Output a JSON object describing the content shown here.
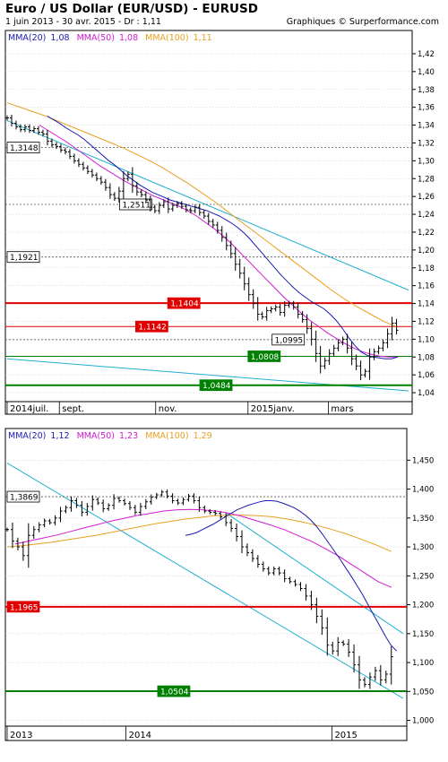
{
  "header": {
    "title": "Euro / US Dollar (EUR/USD) - EURUSD",
    "subtitle": "1 juin 2013 - 30 avr. 2015 - Dr : 1,11",
    "credit": "Graphiques © Surperformance.com"
  },
  "colors": {
    "mma20": "#1a1ab0",
    "mma50": "#d21ad2",
    "mma100": "#e8a020",
    "trend": "#20b0d0",
    "resistance": "#e00000",
    "support": "#008000",
    "dashed": "#555555",
    "grid": "#c8c8c8",
    "price": "#000000"
  },
  "chart_data": [
    {
      "type": "ohlc",
      "name": "daily",
      "legend": [
        {
          "label": "MMA(20)",
          "value": "1,08",
          "color": "#1a1ab0"
        },
        {
          "label": "MMA(50)",
          "value": "1,08",
          "color": "#d21ad2"
        },
        {
          "label": "MMA(100)",
          "value": "1,11",
          "color": "#e8a020"
        }
      ],
      "ylim": [
        1.03,
        1.43
      ],
      "y_ticks": [
        1.04,
        1.06,
        1.08,
        1.1,
        1.12,
        1.14,
        1.16,
        1.18,
        1.2,
        1.22,
        1.24,
        1.26,
        1.28,
        1.3,
        1.32,
        1.34,
        1.36,
        1.38,
        1.4,
        1.42
      ],
      "y_tick_labels": [
        "1,04",
        "1,06",
        "1,08",
        "1,10",
        "1,12",
        "1,14",
        "1,16",
        "1,18",
        "1,20",
        "1,22",
        "1,24",
        "1,26",
        "1,28",
        "1,30",
        "1,32",
        "1,34",
        "1,36",
        "1,38",
        "1,40",
        "1,42"
      ],
      "x_labels": [
        "2014juil.",
        "sept.",
        "nov.",
        "2015janv.",
        "mars"
      ],
      "x_label_pos": [
        0.0,
        0.13,
        0.37,
        0.6,
        0.8
      ],
      "close": [
        1.348,
        1.342,
        1.338,
        1.335,
        1.338,
        1.334,
        1.336,
        1.332,
        1.33,
        1.322,
        1.318,
        1.316,
        1.312,
        1.31,
        1.305,
        1.3,
        1.296,
        1.292,
        1.288,
        1.284,
        1.28,
        1.276,
        1.27,
        1.262,
        1.258,
        1.266,
        1.28,
        1.285,
        1.272,
        1.265,
        1.262,
        1.256,
        1.248,
        1.244,
        1.25,
        1.254,
        1.246,
        1.25,
        1.252,
        1.249,
        1.245,
        1.244,
        1.248,
        1.242,
        1.238,
        1.232,
        1.228,
        1.222,
        1.214,
        1.205,
        1.196,
        1.184,
        1.174,
        1.162,
        1.15,
        1.14,
        1.128,
        1.125,
        1.132,
        1.134,
        1.136,
        1.13,
        1.138,
        1.14,
        1.136,
        1.128,
        1.122,
        1.112,
        1.1,
        1.084,
        1.07,
        1.076,
        1.084,
        1.09,
        1.096,
        1.1,
        1.09,
        1.078,
        1.07,
        1.06,
        1.064,
        1.08,
        1.086,
        1.09,
        1.096,
        1.106,
        1.118,
        1.11
      ],
      "mma20": [
        1.35,
        1.346,
        1.342,
        1.337,
        1.333,
        1.329,
        1.324,
        1.318,
        1.312,
        1.306,
        1.3,
        1.295,
        1.289,
        1.283,
        1.278,
        1.273,
        1.269,
        1.265,
        1.262,
        1.259,
        1.256,
        1.254,
        1.252,
        1.25,
        1.248,
        1.246,
        1.244,
        1.241,
        1.238,
        1.234,
        1.23,
        1.225,
        1.219,
        1.212,
        1.204,
        1.196,
        1.188,
        1.18,
        1.172,
        1.165,
        1.158,
        1.152,
        1.147,
        1.142,
        1.138,
        1.134,
        1.128,
        1.121,
        1.112,
        1.102,
        1.093,
        1.086,
        1.082,
        1.08,
        1.079,
        1.078,
        1.078,
        1.08
      ],
      "mma50": [
        1.34,
        1.334,
        1.328,
        1.322,
        1.315,
        1.308,
        1.301,
        1.294,
        1.288,
        1.282,
        1.276,
        1.271,
        1.266,
        1.261,
        1.257,
        1.253,
        1.249,
        1.244,
        1.238,
        1.231,
        1.224,
        1.216,
        1.207,
        1.197,
        1.187,
        1.177,
        1.167,
        1.157,
        1.147,
        1.138,
        1.129,
        1.121,
        1.114,
        1.107,
        1.101,
        1.095,
        1.09,
        1.086,
        1.083,
        1.081,
        1.08,
        1.08
      ],
      "mma100": [
        1.365,
        1.36,
        1.355,
        1.35,
        1.344,
        1.338,
        1.332,
        1.326,
        1.32,
        1.314,
        1.307,
        1.3,
        1.292,
        1.283,
        1.274,
        1.264,
        1.254,
        1.243,
        1.232,
        1.221,
        1.21,
        1.199,
        1.188,
        1.177,
        1.166,
        1.155,
        1.145,
        1.136,
        1.128,
        1.12,
        1.114
      ],
      "trendlines": [
        {
          "from": [
            0.0,
            1.345
          ],
          "to": [
            1.0,
            1.155
          ]
        },
        {
          "from": [
            0.0,
            1.078
          ],
          "to": [
            1.0,
            1.042
          ]
        }
      ],
      "levels": [
        {
          "value": 1.3148,
          "label": "1,3148",
          "style": "dashed",
          "label_pos": 0.0
        },
        {
          "value": 1.2511,
          "label": "1,2511",
          "style": "dashed",
          "label_pos": 0.28
        },
        {
          "value": 1.1921,
          "label": "1,1921",
          "style": "dashed",
          "label_pos": 0.0
        },
        {
          "value": 1.1404,
          "label": "1,1404",
          "style": "red-thick",
          "label_pos": 0.4
        },
        {
          "value": 1.1142,
          "label": "1,1142",
          "style": "red",
          "label_pos": 0.32
        },
        {
          "value": 1.0995,
          "label": "1,0995",
          "style": "dashed",
          "label_pos": 0.66
        },
        {
          "value": 1.0808,
          "label": "1,0808",
          "style": "green",
          "label_pos": 0.6
        },
        {
          "value": 1.0484,
          "label": "1,0484",
          "style": "green-thick",
          "label_pos": 0.48
        }
      ]
    },
    {
      "type": "ohlc",
      "name": "weekly",
      "legend": [
        {
          "label": "MMA(20)",
          "value": "1,12",
          "color": "#1a1ab0"
        },
        {
          "label": "MMA(50)",
          "value": "1,23",
          "color": "#d21ad2"
        },
        {
          "label": "MMA(100)",
          "value": "1,29",
          "color": "#e8a020"
        }
      ],
      "ylim": [
        0.99,
        1.48
      ],
      "y_ticks": [
        1.0,
        1.05,
        1.1,
        1.15,
        1.2,
        1.25,
        1.3,
        1.35,
        1.4,
        1.45
      ],
      "y_tick_labels": [
        "1,000",
        "1,050",
        "1,100",
        "1,150",
        "1,200",
        "1,250",
        "1,300",
        "1,350",
        "1,400",
        "1,450"
      ],
      "x_labels": [
        "2013",
        "2014",
        "2015"
      ],
      "x_label_pos": [
        0.0,
        0.3,
        0.82
      ],
      "close": [
        1.33,
        1.31,
        1.3,
        1.285,
        1.32,
        1.33,
        1.338,
        1.345,
        1.342,
        1.35,
        1.362,
        1.368,
        1.38,
        1.372,
        1.36,
        1.37,
        1.382,
        1.376,
        1.366,
        1.372,
        1.384,
        1.38,
        1.375,
        1.368,
        1.36,
        1.37,
        1.378,
        1.386,
        1.39,
        1.395,
        1.388,
        1.38,
        1.376,
        1.382,
        1.388,
        1.38,
        1.368,
        1.362,
        1.36,
        1.358,
        1.352,
        1.342,
        1.332,
        1.318,
        1.3,
        1.29,
        1.28,
        1.27,
        1.262,
        1.255,
        1.262,
        1.255,
        1.245,
        1.24,
        1.235,
        1.228,
        1.215,
        1.2,
        1.18,
        1.16,
        1.13,
        1.12,
        1.135,
        1.132,
        1.118,
        1.096,
        1.07,
        1.062,
        1.075,
        1.086,
        1.07,
        1.08,
        1.11
      ],
      "mma20": [
        1.32,
        1.322,
        1.325,
        1.33,
        1.335,
        1.34,
        1.346,
        1.352,
        1.358,
        1.364,
        1.368,
        1.372,
        1.375,
        1.378,
        1.38,
        1.38,
        1.379,
        1.376,
        1.372,
        1.368,
        1.362,
        1.355,
        1.346,
        1.335,
        1.322,
        1.308,
        1.294,
        1.28,
        1.265,
        1.25,
        1.234,
        1.218,
        1.2,
        1.182,
        1.164,
        1.146,
        1.13,
        1.12
      ],
      "mma50": [
        1.305,
        1.31,
        1.315,
        1.32,
        1.326,
        1.332,
        1.338,
        1.344,
        1.349,
        1.354,
        1.358,
        1.362,
        1.364,
        1.365,
        1.364,
        1.362,
        1.358,
        1.352,
        1.345,
        1.338,
        1.33,
        1.32,
        1.31,
        1.298,
        1.285,
        1.27,
        1.255,
        1.24,
        1.23
      ],
      "mma100": [
        1.3,
        1.302,
        1.305,
        1.308,
        1.312,
        1.316,
        1.32,
        1.325,
        1.33,
        1.335,
        1.34,
        1.344,
        1.348,
        1.351,
        1.354,
        1.355,
        1.355,
        1.354,
        1.352,
        1.348,
        1.343,
        1.337,
        1.33,
        1.322,
        1.313,
        1.303,
        1.292
      ],
      "trendlines": [
        {
          "from": [
            0.0,
            1.445
          ],
          "to": [
            1.0,
            1.038
          ]
        },
        {
          "from": [
            0.55,
            1.36
          ],
          "to": [
            1.0,
            1.15
          ]
        }
      ],
      "levels": [
        {
          "value": 1.3869,
          "label": "1,3869",
          "style": "dashed",
          "label_pos": 0.0
        },
        {
          "value": 1.1965,
          "label": "1,1965",
          "style": "red-thick",
          "label_pos": 0.0
        },
        {
          "value": 1.0504,
          "label": "1,0504",
          "style": "green-thick",
          "label_pos": 0.38
        }
      ]
    }
  ]
}
